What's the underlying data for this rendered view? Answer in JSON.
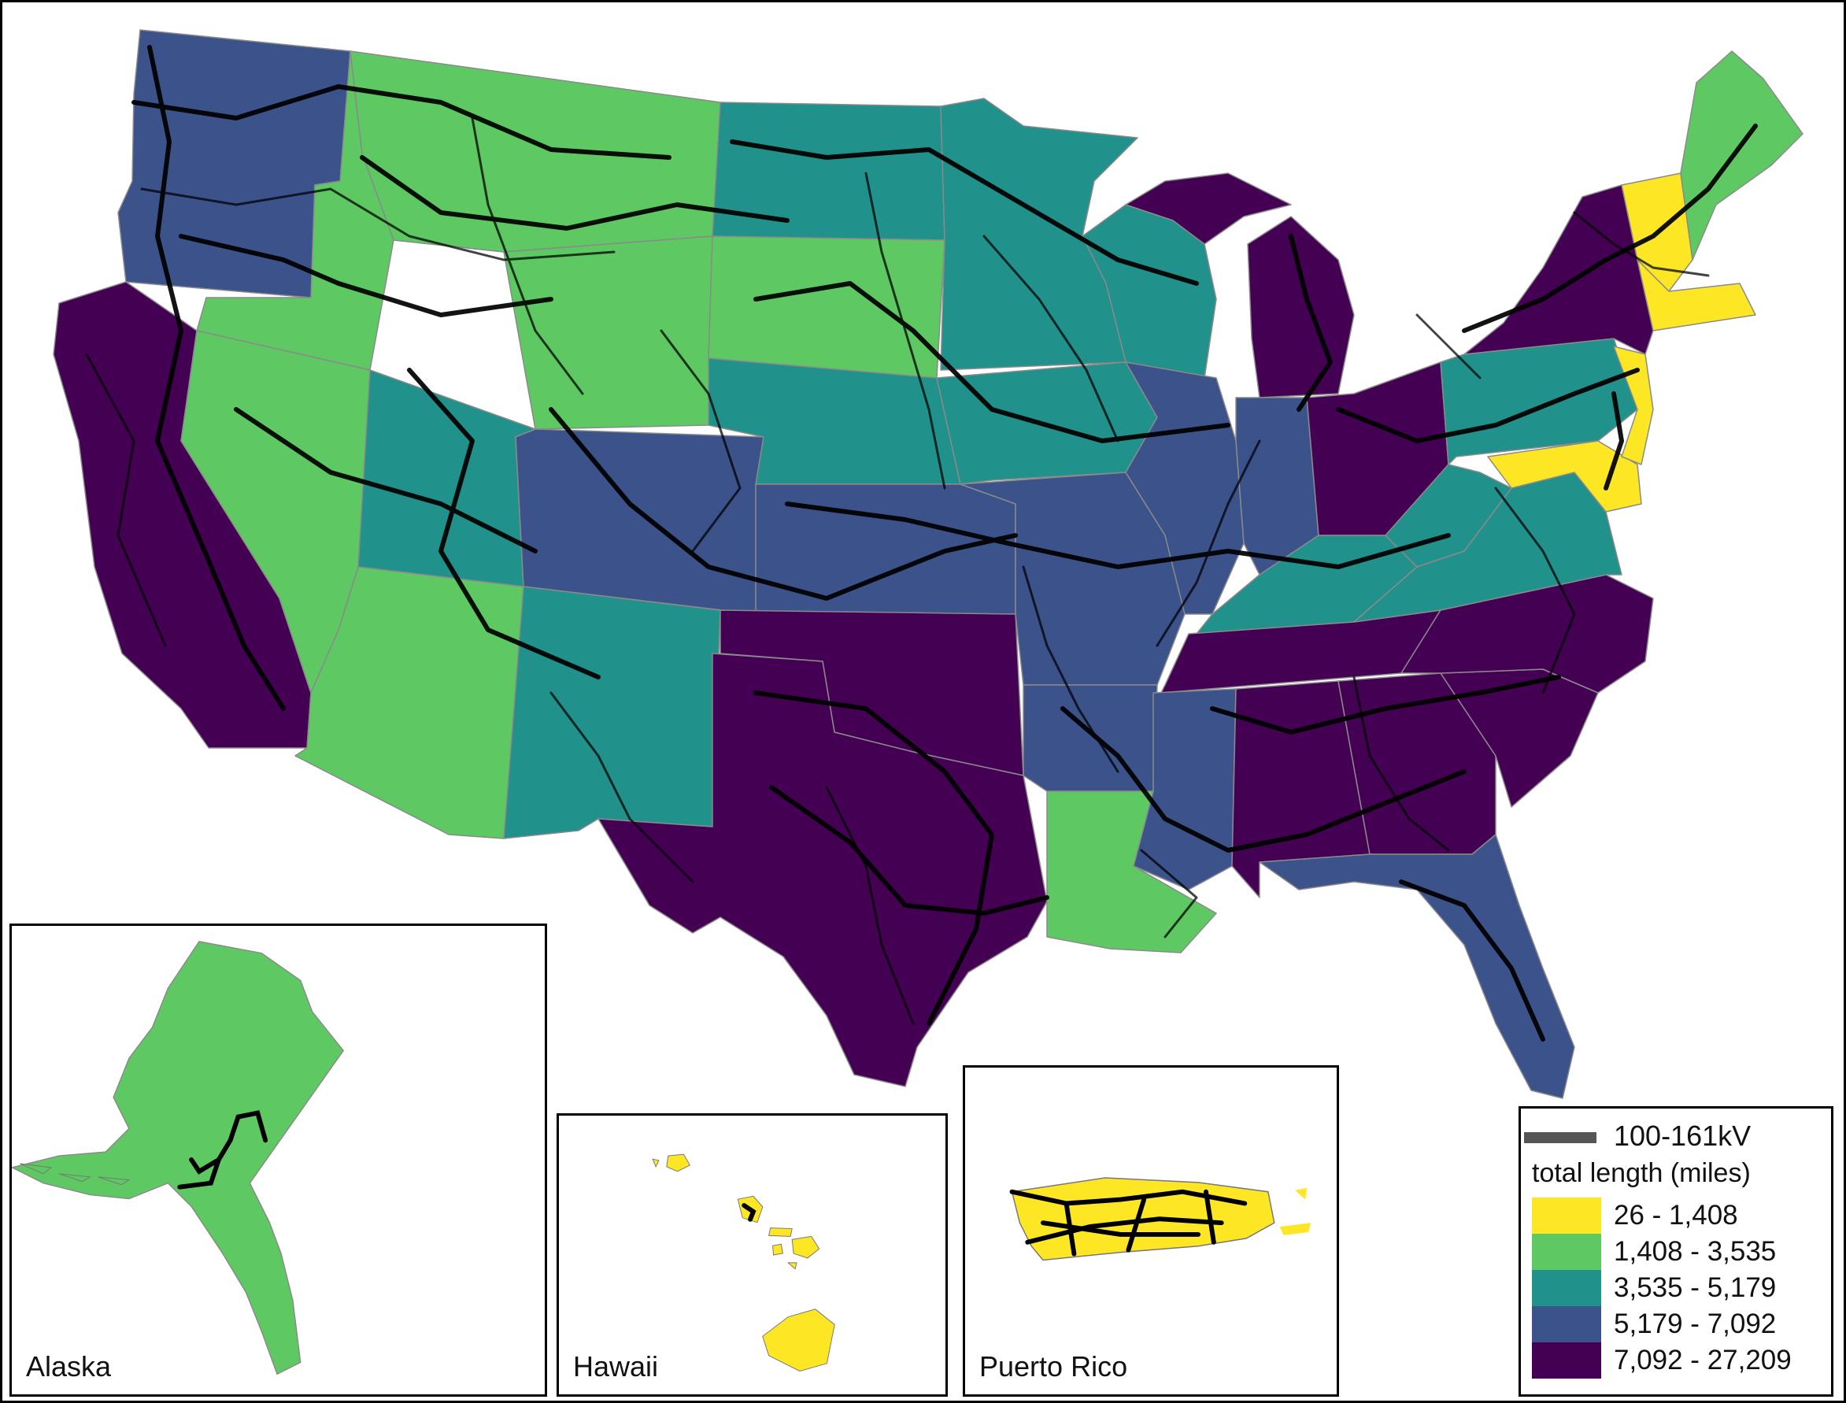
{
  "colors": {
    "bin1": "#fde725",
    "bin2": "#5ec962",
    "bin3": "#21918c",
    "bin4": "#3b528b",
    "bin5": "#440154",
    "line": "#000000",
    "legend_line": "#555555"
  },
  "legend": {
    "line_label": "100-161kV",
    "title": "total length (miles)",
    "bins": [
      {
        "label": "26 - 1,408",
        "color": "#fde725"
      },
      {
        "label": "1,408 - 3,535",
        "color": "#5ec962"
      },
      {
        "label": "3,535 - 5,179",
        "color": "#21918c"
      },
      {
        "label": "5,179 - 7,092",
        "color": "#3b528b"
      },
      {
        "label": "7,092 - 27,209",
        "color": "#440154"
      }
    ]
  },
  "insets": {
    "alaska": "Alaska",
    "hawaii": "Hawaii",
    "puerto_rico": "Puerto Rico"
  }
}
